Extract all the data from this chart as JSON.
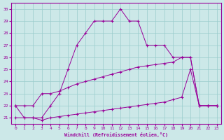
{
  "xlabel": "Windchill (Refroidissement éolien,°C)",
  "bg_color": "#cce8e8",
  "line_color": "#990099",
  "grid_color": "#99cccc",
  "line1_x": [
    0,
    1,
    2,
    3,
    4,
    5,
    6,
    7,
    8,
    9,
    10,
    11,
    12,
    13,
    14,
    15,
    16,
    17,
    18,
    19,
    20,
    21,
    22,
    23
  ],
  "line1_y": [
    22,
    21,
    21,
    21,
    22,
    23,
    25,
    27,
    28,
    29,
    29,
    29,
    30,
    29,
    29,
    27,
    27,
    27,
    26,
    26,
    26,
    22,
    22,
    22
  ],
  "line2_x": [
    0,
    1,
    2,
    3,
    4,
    5,
    6,
    7,
    8,
    9,
    10,
    11,
    12,
    13,
    14,
    15,
    16,
    17,
    18,
    19,
    20,
    21,
    22,
    23
  ],
  "line2_y": [
    22,
    22,
    22,
    23,
    23,
    23.2,
    23.5,
    23.8,
    24,
    24.2,
    24.4,
    24.6,
    24.8,
    25,
    25.2,
    25.3,
    25.4,
    25.5,
    25.6,
    26,
    26,
    22,
    22,
    22
  ],
  "line3_x": [
    0,
    1,
    2,
    3,
    4,
    5,
    6,
    7,
    8,
    9,
    10,
    11,
    12,
    13,
    14,
    15,
    16,
    17,
    18,
    19,
    20,
    21,
    22,
    23
  ],
  "line3_y": [
    21,
    21,
    21,
    20.8,
    21,
    21.1,
    21.2,
    21.3,
    21.4,
    21.5,
    21.6,
    21.7,
    21.8,
    21.9,
    22,
    22.1,
    22.2,
    22.3,
    22.5,
    22.7,
    25,
    22,
    22,
    22
  ],
  "ylim": [
    20.5,
    30.5
  ],
  "xlim": [
    -0.5,
    23.5
  ],
  "yticks": [
    21,
    22,
    23,
    24,
    25,
    26,
    27,
    28,
    29,
    30
  ],
  "xticks": [
    0,
    1,
    2,
    3,
    4,
    5,
    6,
    7,
    8,
    9,
    10,
    11,
    12,
    13,
    14,
    15,
    16,
    17,
    18,
    19,
    20,
    21,
    22,
    23
  ]
}
